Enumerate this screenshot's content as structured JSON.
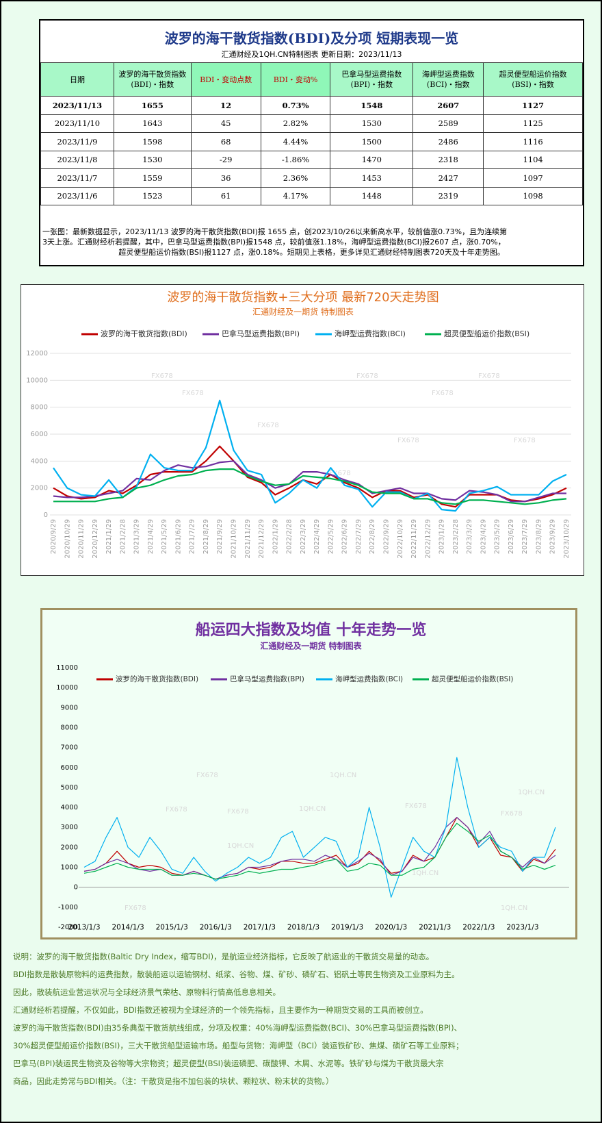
{
  "header": {
    "title": "波罗的海干散货指数(BDI)及分项  短期表现一览",
    "subtitle": "汇通财经及1QH.CN特制图表    更新日期：2023/11/13"
  },
  "table": {
    "header": [
      [
        "日期"
      ],
      [
        "波罗的海干散货指数",
        "(BDI)・指数"
      ],
      [
        "BDI・变动点数"
      ],
      [
        "BDI・变动%"
      ],
      [
        "巴拿马型运费指数",
        "(BPI)・指数"
      ],
      [
        "海岬型运费指数",
        "(BCI)・指数"
      ],
      [
        "超灵便型船运价指数",
        "(BSI)・指数"
      ]
    ],
    "rows": [
      [
        "2023/11/13",
        "1655",
        "12",
        "0.73%",
        "1548",
        "2607",
        "1127"
      ],
      [
        "2023/11/10",
        "1643",
        "45",
        "2.82%",
        "1530",
        "2589",
        "1125"
      ],
      [
        "2023/11/9",
        "1598",
        "68",
        "4.44%",
        "1500",
        "2486",
        "1116"
      ],
      [
        "2023/11/8",
        "1530",
        "-29",
        "-1.86%",
        "1470",
        "2318",
        "1104"
      ],
      [
        "2023/11/7",
        "1559",
        "36",
        "2.36%",
        "1453",
        "2427",
        "1097"
      ],
      [
        "2023/11/6",
        "1523",
        "61",
        "4.17%",
        "1448",
        "2319",
        "1098"
      ]
    ]
  },
  "note": [
    "一张图：最新数据显示，2023/11/13 波罗的海干散货指数(BDI)报 1655 点，创2023/10/26以来新高水平，较前值涨0.73%，且为连续第",
    "3天上涨。汇通财经析若提醒，其中，巴拿马型运费指数(BPI)报1548 点，较前值涨1.18%，海岬型运费指数(BCI)报2607 点，涨0.70%，",
    "超灵便型船运价指数(BSI)报1127 点，涨0.18%。短期见上表格，更多详见汇通财经特制图表720天及十年走势图。"
  ],
  "chart_data": [
    {
      "type": "line",
      "title": "波罗的海干散货指数+三大分项  最新720天走势图",
      "subtitle": "汇通财经及一期货  特制图表",
      "watermarks": [
        "FX678"
      ],
      "categories": [
        "2020/9/29",
        "2020/10/29",
        "2020/11/29",
        "2020/12/29",
        "2021/1/29",
        "2021/2/28",
        "2021/3/29",
        "2021/4/29",
        "2021/5/29",
        "2021/6/29",
        "2021/7/29",
        "2021/8/29",
        "2021/9/29",
        "2021/10/29",
        "2021/11/29",
        "2021/12/29",
        "2022/1/29",
        "2022/2/28",
        "2022/3/29",
        "2022/4/29",
        "2022/5/29",
        "2022/6/29",
        "2022/7/29",
        "2022/8/29",
        "2022/9/29",
        "2022/10/29",
        "2022/11/29",
        "2022/12/29",
        "2023/1/29",
        "2023/2/28",
        "2023/3/29",
        "2023/4/29",
        "2023/5/29",
        "2023/6/29",
        "2023/7/29",
        "2023/8/29",
        "2023/9/29",
        "2023/10/29"
      ],
      "series": [
        {
          "name": "波罗的海干散货指数(BDI)",
          "color": "#c00000",
          "values": [
            2000,
            1400,
            1200,
            1300,
            1800,
            1600,
            2200,
            3000,
            3200,
            3200,
            3200,
            4000,
            5100,
            4000,
            2800,
            2400,
            1500,
            2000,
            2600,
            2300,
            3000,
            2400,
            2000,
            1300,
            1800,
            1800,
            1300,
            1500,
            800,
            600,
            1500,
            1500,
            1500,
            1100,
            1000,
            1200,
            1500,
            2000
          ]
        },
        {
          "name": "巴拿马型运费指数(BPI)",
          "color": "#7030a0",
          "values": [
            1400,
            1300,
            1300,
            1400,
            1600,
            1800,
            2700,
            2600,
            3300,
            3700,
            3500,
            3600,
            3900,
            4000,
            3000,
            2600,
            2000,
            2300,
            3200,
            3200,
            3000,
            2600,
            2300,
            1600,
            1800,
            2000,
            1600,
            1600,
            1200,
            1100,
            1800,
            1700,
            1500,
            1000,
            1000,
            1300,
            1600,
            1600
          ]
        },
        {
          "name": "海岬型运费指数(BCI)",
          "color": "#00b0f0",
          "values": [
            3500,
            2000,
            1500,
            1400,
            2600,
            1300,
            2100,
            4500,
            3500,
            3300,
            3300,
            5000,
            8500,
            4800,
            3300,
            3000,
            900,
            1600,
            2600,
            2000,
            3500,
            2200,
            1900,
            600,
            1700,
            1700,
            1200,
            1600,
            400,
            300,
            1600,
            1800,
            2100,
            1500,
            1500,
            1500,
            2500,
            3000
          ]
        },
        {
          "name": "超灵便型船运价指数(BSI)",
          "color": "#00b050",
          "values": [
            1000,
            1000,
            1000,
            1000,
            1200,
            1300,
            2000,
            2200,
            2600,
            2900,
            3000,
            3300,
            3400,
            3400,
            2900,
            2500,
            2200,
            2300,
            2900,
            2800,
            2700,
            2500,
            2200,
            1700,
            1600,
            1600,
            1200,
            1200,
            900,
            800,
            1100,
            1100,
            1000,
            900,
            800,
            900,
            1100,
            1200
          ]
        }
      ],
      "ylim": [
        0,
        12000
      ],
      "yticks": [
        0,
        2000,
        4000,
        6000,
        8000,
        10000,
        12000
      ],
      "grid": true,
      "legend": "top"
    },
    {
      "type": "line",
      "title": "船运四大指数及均值 十年走势一览",
      "subtitle": "汇通财经及一期货 特制图表",
      "watermarks": [
        "FX678",
        "1QH.CN"
      ],
      "categories": [
        "2013/1/3",
        null,
        null,
        null,
        "2014/1/3",
        null,
        null,
        null,
        "2015/1/3",
        null,
        null,
        null,
        "2016/1/3",
        null,
        null,
        null,
        "2017/1/3",
        null,
        null,
        null,
        "2018/1/3",
        null,
        null,
        null,
        "2019/1/3",
        null,
        null,
        null,
        "2020/1/3",
        null,
        null,
        null,
        "2021/1/3",
        null,
        null,
        null,
        "2022/1/3",
        null,
        null,
        null,
        "2023/1/3",
        null,
        null,
        null
      ],
      "series": [
        {
          "name": "波罗的海干散货指数(BDI)",
          "color": "#c00000",
          "values": [
            800,
            900,
            1200,
            1800,
            1200,
            1000,
            1100,
            1000,
            700,
            600,
            800,
            600,
            400,
            600,
            700,
            1000,
            900,
            1000,
            1300,
            1300,
            1200,
            1200,
            1400,
            1600,
            1000,
            1200,
            1800,
            1300,
            700,
            800,
            1600,
            1300,
            1500,
            2500,
            3500,
            3000,
            2000,
            2500,
            1600,
            1500,
            800,
            1400,
            1200,
            1900
          ]
        },
        {
          "name": "巴拿马型运费指数(BPI)",
          "color": "#7030a0",
          "values": [
            800,
            900,
            1200,
            1400,
            1200,
            900,
            800,
            900,
            600,
            600,
            800,
            600,
            400,
            600,
            700,
            1000,
            1000,
            1100,
            1300,
            1400,
            1400,
            1300,
            1600,
            1400,
            1000,
            1300,
            1700,
            1400,
            600,
            800,
            1500,
            1300,
            2000,
            3000,
            3500,
            3000,
            2200,
            2800,
            1800,
            1500,
            1000,
            1500,
            1200,
            1600
          ]
        },
        {
          "name": "海岬型运费指数(BCI)",
          "color": "#00b0f0",
          "values": [
            1000,
            1300,
            2500,
            3500,
            2000,
            1500,
            2500,
            1800,
            900,
            700,
            1500,
            800,
            300,
            700,
            1000,
            1500,
            1200,
            1500,
            2500,
            2800,
            1500,
            2000,
            2500,
            2300,
            1000,
            1500,
            4000,
            2000,
            -500,
            1000,
            2500,
            1800,
            1500,
            3000,
            6500,
            4000,
            2000,
            2500,
            2000,
            1800,
            800,
            1500,
            1500,
            3000
          ]
        },
        {
          "name": "超灵便型船运价指数(BSI)",
          "color": "#00b050",
          "values": [
            700,
            800,
            1000,
            1200,
            1000,
            900,
            900,
            900,
            600,
            600,
            700,
            600,
            400,
            500,
            600,
            800,
            700,
            800,
            900,
            900,
            1000,
            1100,
            1300,
            1400,
            800,
            900,
            1200,
            1100,
            600,
            600,
            900,
            1000,
            1500,
            2500,
            3200,
            2800,
            2300,
            2600,
            1800,
            1500,
            900,
            1100,
            900,
            1100
          ]
        }
      ],
      "ylim": [
        -2000,
        11000
      ],
      "yticks": [
        -2000,
        -1000,
        0,
        1000,
        2000,
        3000,
        4000,
        5000,
        6000,
        7000,
        8000,
        9000,
        10000,
        11000
      ],
      "grid": false,
      "legend": "top"
    }
  ],
  "footer": [
    "说明：波罗的海干散货指数(Baltic Dry Index，缩写BDI)，是航运业经济指标，它反映了航运业的干散货交易量的动态。",
    "BDI指数是散装原物料的运费指数，散装船运以运输钢材、纸浆、谷物、煤、矿砂、磷矿石、铝矾土等民生物资及工业原料为主。",
    "因此，散装航运业营运状况与全球经济景气荣枯、原物料行情高低息息相关。",
    "汇通财经析若提醒，不仅如此，BDI指数还被视为全球经济的一个领先指标，且主要作为一种期货交易的工具而被创立。",
    "波罗的海干散货指数(BDI)由35条典型干散货航线组成，分项及权重：40%海岬型运费指数(BCI)、30%巴拿马型运费指数(BPI)、",
    "30%超灵便型船运价指数(BSI)，三大干散货船型运输市场。船型与货物：海岬型（BCI）装运铁矿砂、焦煤、磷矿石等工业原料；",
    "巴拿马(BPI)装运民生物资及谷物等大宗物资；超灵便型(BSI)装运磷肥、碳酸钾、木屑、水泥等。铁矿砂与煤为干散货最大宗",
    "商品，因此走势常与BDI相关。（注：干散货是指不加包装的块状、颗粒状、粉末状的货物。）"
  ]
}
